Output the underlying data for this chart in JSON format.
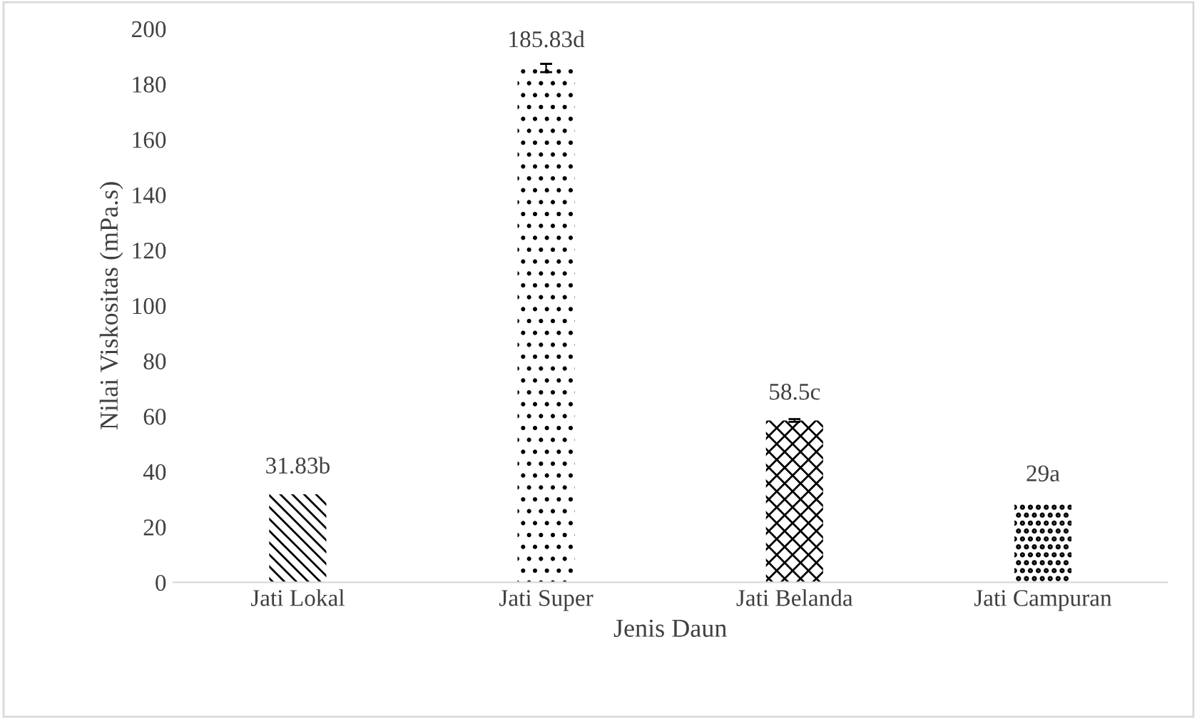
{
  "chart_data": {
    "type": "bar",
    "xlabel": "Jenis Daun",
    "ylabel": "Nilai Viskositas (mPa.s)",
    "categories": [
      "Jati Lokal",
      "Jati Super",
      "Jati Belanda",
      "Jati Campuran"
    ],
    "values": [
      31.83,
      185.83,
      58.5,
      29
    ],
    "value_labels": [
      "31.83b",
      "185.83d",
      "58.5c",
      "29a"
    ],
    "errors": [
      null,
      1.5,
      0.5,
      null
    ],
    "color": "#000000",
    "ylim": [
      0,
      200
    ],
    "yticks": [
      0,
      20,
      40,
      60,
      80,
      100,
      120,
      140,
      160,
      180,
      200
    ],
    "grid": false,
    "legend": false
  }
}
